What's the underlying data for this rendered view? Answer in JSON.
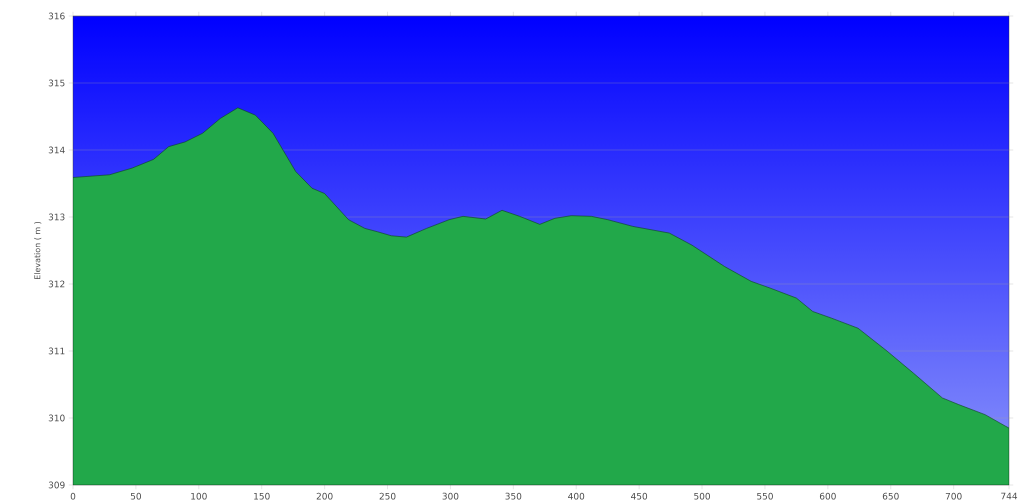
{
  "chart_data": {
    "type": "area",
    "ylabel": "Elevation ( m )",
    "xlim": [
      0,
      744
    ],
    "ylim": [
      309,
      316
    ],
    "xticks": [
      0,
      50,
      100,
      150,
      200,
      250,
      300,
      350,
      400,
      450,
      500,
      550,
      600,
      650,
      700,
      744
    ],
    "yticks": [
      309,
      310,
      311,
      312,
      313,
      314,
      315,
      316
    ],
    "grid": "y",
    "series": [
      {
        "color": "#22a84a",
        "x": [
          0,
          29,
          47,
          64,
          76,
          89,
          103,
          117,
          131,
          145,
          159,
          177,
          190,
          200,
          219,
          232,
          242,
          253,
          265,
          281,
          299,
          310,
          328,
          341,
          355,
          371,
          383,
          396,
          412,
          425,
          445,
          474,
          492,
          518,
          539,
          554,
          575,
          588,
          603,
          624,
          647,
          668,
          691,
          704,
          725,
          741,
          744
        ],
        "values": [
          313.59,
          313.63,
          313.73,
          313.86,
          314.05,
          314.12,
          314.25,
          314.47,
          314.63,
          314.52,
          314.25,
          313.68,
          313.43,
          313.35,
          312.96,
          312.83,
          312.78,
          312.72,
          312.7,
          312.83,
          312.96,
          313.01,
          312.97,
          313.1,
          313.01,
          312.89,
          312.98,
          313.02,
          313.01,
          312.96,
          312.86,
          312.76,
          312.58,
          312.26,
          312.04,
          311.94,
          311.79,
          311.59,
          311.49,
          311.34,
          311.0,
          310.67,
          310.3,
          310.2,
          310.05,
          309.88,
          309.85
        ]
      }
    ]
  }
}
